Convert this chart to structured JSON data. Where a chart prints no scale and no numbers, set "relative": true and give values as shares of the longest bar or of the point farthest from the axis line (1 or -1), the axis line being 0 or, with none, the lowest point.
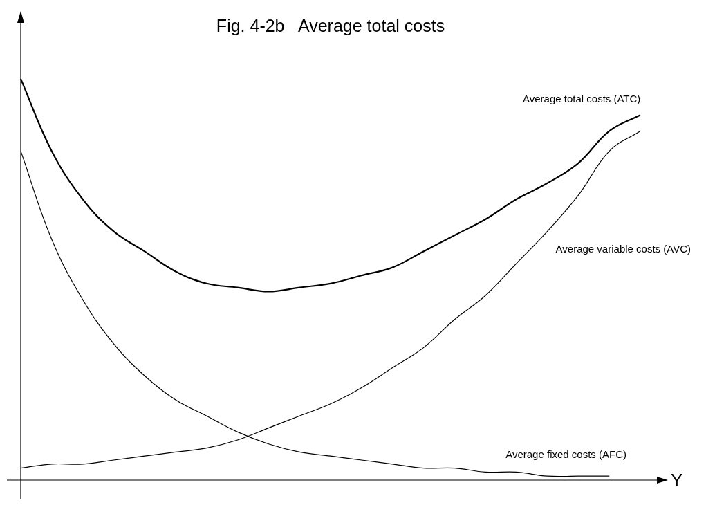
{
  "chart_data": {
    "type": "line",
    "title": "Fig. 4-2b   Average total costs",
    "xlabel": "Y",
    "relative": true,
    "legend": false,
    "grid": false,
    "marker": "none",
    "line_style": "solid",
    "categories": [
      null,
      null,
      null,
      null,
      null,
      null,
      null,
      null,
      null,
      null,
      null,
      null,
      null,
      null,
      null,
      null,
      null,
      null,
      null,
      null,
      null
    ],
    "series": [
      {
        "name": "Average total costs (ATC)",
        "color": "#000000",
        "values": [
          1.0,
          0.82,
          0.7,
          0.62,
          0.57,
          0.52,
          0.49,
          0.48,
          0.47,
          0.48,
          0.49,
          0.51,
          0.53,
          0.57,
          0.61,
          0.65,
          0.7,
          0.74,
          0.79,
          0.87,
          0.91
        ]
      },
      {
        "name": "Average variable costs (AVC)",
        "color": "#000000",
        "values": [
          0.03,
          0.04,
          0.04,
          0.05,
          0.06,
          0.07,
          0.08,
          0.1,
          0.13,
          0.16,
          0.19,
          0.23,
          0.28,
          0.33,
          0.4,
          0.46,
          0.54,
          0.62,
          0.71,
          0.82,
          0.87
        ]
      },
      {
        "name": "Average fixed costs (AFC)",
        "color": "#000000",
        "values": [
          0.82,
          0.6,
          0.45,
          0.34,
          0.26,
          0.2,
          0.16,
          0.12,
          0.09,
          0.07,
          0.06,
          0.05,
          0.04,
          0.03,
          0.03,
          0.02,
          0.02,
          0.01,
          0.01,
          0.01,
          null
        ]
      }
    ]
  }
}
